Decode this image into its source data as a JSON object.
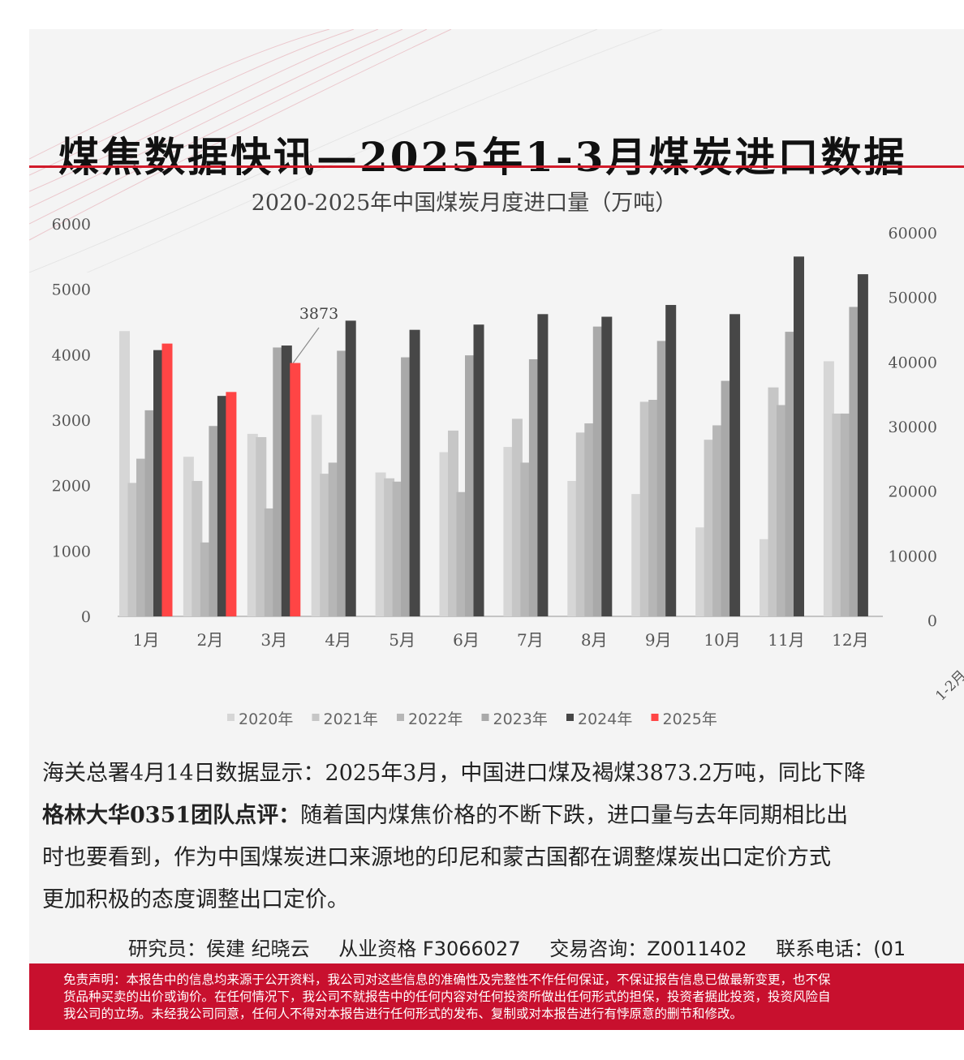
{
  "header": {
    "title": "煤焦数据快讯—2025年1-3月煤炭进口数据"
  },
  "colors": {
    "accent": "#d11a2a",
    "footer": "#c8102e"
  },
  "chart_data": {
    "type": "bar",
    "title": "2020-2025年中国煤炭月度进口量（万吨）",
    "categories": [
      "1月",
      "2月",
      "3月",
      "4月",
      "5月",
      "6月",
      "7月",
      "8月",
      "9月",
      "10月",
      "11月",
      "12月"
    ],
    "ylim": [
      0,
      6000
    ],
    "yticks": [
      "0",
      "1000",
      "2000",
      "3000",
      "4000",
      "5000",
      "6000"
    ],
    "y2ticks": [
      "0",
      "10000",
      "20000",
      "30000",
      "40000",
      "50000",
      "60000"
    ],
    "y2_partial_category": "1-2月",
    "legend_position": "bottom",
    "annotation": {
      "category": "3月",
      "series": "2025年",
      "label": "3873"
    },
    "series": [
      {
        "name": "2020年",
        "color": "#d6d6d6",
        "values": [
          4360,
          2440,
          2790,
          3080,
          2200,
          2510,
          2590,
          2070,
          1870,
          1360,
          1180,
          3900
        ]
      },
      {
        "name": "2021年",
        "color": "#c6c6c6",
        "values": [
          2040,
          2070,
          2740,
          2180,
          2110,
          2840,
          3020,
          2810,
          3280,
          2700,
          3500,
          3100
        ]
      },
      {
        "name": "2022年",
        "color": "#b6b6b6",
        "values": [
          2410,
          1130,
          1650,
          2350,
          2060,
          1900,
          2350,
          2950,
          3310,
          2920,
          3230,
          3100
        ]
      },
      {
        "name": "2023年",
        "color": "#a9a9a9",
        "values": [
          3150,
          2910,
          4110,
          4060,
          3960,
          3990,
          3930,
          4430,
          4210,
          3600,
          4350,
          4730
        ]
      },
      {
        "name": "2024年",
        "color": "#474747",
        "values": [
          4070,
          3370,
          4140,
          4520,
          4380,
          4460,
          4620,
          4580,
          4760,
          4620,
          5500,
          5230
        ]
      },
      {
        "name": "2025年",
        "color": "#ff4545",
        "values": [
          4170,
          3430,
          3873,
          null,
          null,
          null,
          null,
          null,
          null,
          null,
          null,
          null
        ]
      }
    ]
  },
  "body": {
    "line1": "海关总署4月14日数据显示：2025年3月，中国进口煤及褐煤3873.2万吨，同比下降",
    "line2_bold": "格林大华0351团队点评：",
    "line2": "随着国内煤焦价格的不断下跌，进口量与去年同期相比出",
    "line3": "时也要看到，作为中国煤炭进口来源地的印尼和蒙古国都在调整煤炭出口定价方式",
    "line4": "更加积极的态度调整出口定价。"
  },
  "contact": {
    "researchers": "研究员：侯建 纪晓云",
    "license": "从业资格 F3066027",
    "consult": "交易咨询：Z0011402",
    "phone": "联系电话：(01"
  },
  "disclaimer": {
    "line1": "免责声明：本报告中的信息均来源于公开资料，我公司对这些信息的准确性及完整性不作任何保证，不保证报告信息已做最新变更，也不保",
    "line2": "货品种买卖的出价或询价。在任何情况下，我公司不就报告中的任何内容对任何投资所做出任何形式的担保，投资者据此投资，投资风险自",
    "line3": "我公司的立场。未经我公司同意，任何人不得对本报告进行任何形式的发布、复制或对本报告进行有悖原意的删节和修改。"
  }
}
